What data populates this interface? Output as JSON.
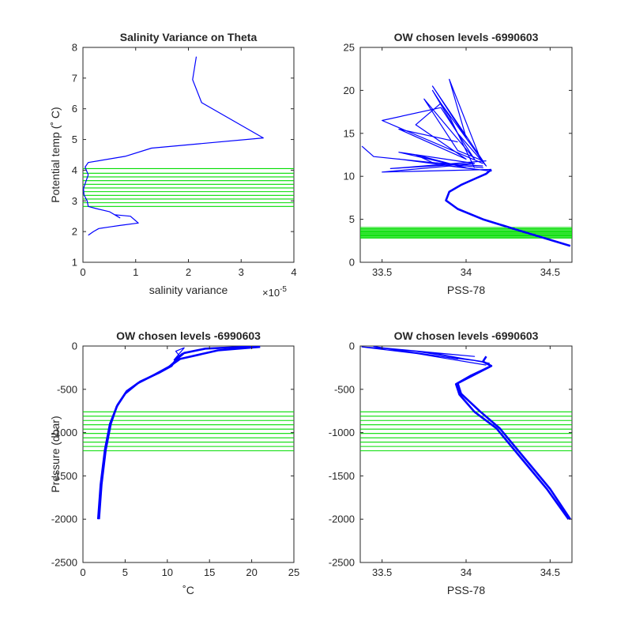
{
  "colors": {
    "data": "#0000ff",
    "levels": "#00dd00",
    "axes": "#262626"
  },
  "chart_data": [
    {
      "type": "line",
      "title": "Salinity Variance on Theta",
      "xlabel": "salinity variance",
      "ylabel": "Potential temp (˚ C)",
      "x_exponent_label": "×10",
      "x_exponent_power": "-5",
      "xlim": [
        0,
        4
      ],
      "ylim": [
        1,
        8
      ],
      "xticks": [
        0,
        1,
        2,
        3,
        4
      ],
      "xticklabels": [
        "0",
        "1",
        "2",
        "3",
        "4"
      ],
      "yticks": [
        1,
        2,
        3,
        4,
        5,
        6,
        7,
        8
      ],
      "yticklabels": [
        "1",
        "2",
        "3",
        "4",
        "5",
        "6",
        "7",
        "8"
      ],
      "series": [
        {
          "x": [
            2.15,
            2.08,
            2.25,
            3.42,
            1.3,
            0.8,
            0.1,
            0.04,
            0.1,
            0.05,
            0.01,
            0.02,
            0.08,
            0.1,
            0.25,
            0.5,
            0.7,
            0.6,
            0.9,
            1.0,
            1.05,
            0.7,
            0.5,
            0.3,
            0.2,
            0.1
          ],
          "y": [
            7.7,
            6.95,
            6.2,
            5.05,
            4.72,
            4.45,
            4.25,
            4.1,
            3.85,
            3.6,
            3.4,
            3.2,
            3.0,
            2.82,
            2.75,
            2.65,
            2.45,
            2.55,
            2.5,
            2.35,
            2.28,
            2.2,
            2.15,
            2.1,
            2.0,
            1.88
          ]
        }
      ],
      "levels": [
        2.82,
        2.94,
        3.06,
        3.18,
        3.3,
        3.42,
        3.54,
        3.66,
        3.78,
        3.9,
        4.05
      ]
    },
    {
      "type": "line",
      "title": "OW chosen levels -6990603",
      "xlabel": "PSS-78",
      "ylabel": "",
      "xlim": [
        33.37,
        34.63
      ],
      "ylim": [
        0,
        25
      ],
      "xticks": [
        33.5,
        34,
        34.5
      ],
      "xticklabels": [
        "33.5",
        "34",
        "34.5"
      ],
      "yticks": [
        0,
        5,
        10,
        15,
        20,
        25
      ],
      "yticklabels": [
        "0",
        "5",
        "10",
        "15",
        "20",
        "25"
      ],
      "series": [
        {
          "x": [
            34.62,
            34.3,
            34.1,
            33.95,
            33.88,
            33.9,
            33.97,
            34.05,
            34.12,
            34.15
          ],
          "y": [
            1.9,
            3.8,
            5.0,
            6.2,
            7.2,
            8.2,
            9.0,
            9.7,
            10.3,
            10.8
          ]
        },
        {
          "x": [
            34.15,
            33.5,
            33.9,
            34.15,
            33.6,
            34.1,
            33.45,
            33.38
          ],
          "y": [
            10.8,
            10.5,
            11.2,
            10.6,
            12.0,
            11.0,
            12.3,
            13.5
          ]
        },
        {
          "x": [
            34.1,
            33.8,
            33.7,
            34.0,
            33.6,
            34.05,
            33.55,
            34.12
          ],
          "y": [
            11.2,
            11.6,
            12.5,
            11.0,
            12.8,
            11.5,
            10.9,
            11.8
          ]
        },
        {
          "x": [
            34.1,
            33.5,
            33.85,
            34.05,
            33.75,
            33.95,
            34.1,
            33.8,
            34.0,
            33.9,
            34.08
          ],
          "y": [
            11.5,
            16.5,
            18.0,
            12.0,
            19.0,
            13.0,
            11.8,
            20.5,
            14.5,
            21.3,
            12.3
          ]
        },
        {
          "x": [
            34.05,
            33.9,
            33.8,
            33.95,
            34.12,
            33.85,
            33.7,
            34.0,
            33.6,
            33.95
          ],
          "y": [
            11.0,
            17.0,
            20.0,
            15.0,
            11.2,
            18.5,
            16.0,
            12.0,
            15.5,
            14.0
          ]
        }
      ],
      "levels": [
        2.82,
        2.94,
        3.06,
        3.18,
        3.3,
        3.42,
        3.54,
        3.66,
        3.78,
        3.9,
        4.05
      ]
    },
    {
      "type": "line",
      "title": "OW chosen levels -6990603",
      "xlabel": "˚C",
      "ylabel": "Pressure (dbar)",
      "xlim": [
        0,
        25
      ],
      "ylim": [
        -2500,
        0
      ],
      "xticks": [
        0,
        5,
        10,
        15,
        20,
        25
      ],
      "xticklabels": [
        "0",
        "5",
        "10",
        "15",
        "20",
        "25"
      ],
      "yticks": [
        -2500,
        -2000,
        -1500,
        -1000,
        -500,
        0
      ],
      "yticklabels": [
        "-2500",
        "-2000",
        "-1500",
        "-1000",
        "-500",
        "0"
      ],
      "series": [
        {
          "x": [
            1.9,
            2.2,
            2.7,
            3.3,
            4.0,
            5.0,
            6.5,
            8.5,
            10.2,
            11.5,
            16.0,
            21.0
          ],
          "y": [
            -2000,
            -1600,
            -1200,
            -900,
            -700,
            -550,
            -430,
            -330,
            -240,
            -150,
            -50,
            -10
          ]
        },
        {
          "x": [
            1.8,
            2.1,
            2.6,
            3.2,
            4.1,
            5.2,
            6.8,
            9.0,
            10.5,
            11.0,
            12.0,
            14.5,
            20.5
          ],
          "y": [
            -2000,
            -1600,
            -1200,
            -900,
            -680,
            -520,
            -410,
            -310,
            -230,
            -160,
            -80,
            -30,
            -5
          ]
        },
        {
          "x": [
            10.0,
            11.5,
            11.0,
            12.0,
            10.8,
            11.8
          ],
          "y": [
            -250,
            -120,
            -60,
            -20,
            -160,
            -80
          ]
        }
      ],
      "levels": [
        -760,
        -810,
        -860,
        -910,
        -960,
        -1010,
        -1060,
        -1110,
        -1160,
        -1210
      ]
    },
    {
      "type": "line",
      "title": "OW chosen levels -6990603",
      "xlabel": "PSS-78",
      "ylabel": "",
      "xlim": [
        33.37,
        34.63
      ],
      "ylim": [
        -2500,
        0
      ],
      "xticks": [
        33.5,
        34,
        34.5
      ],
      "xticklabels": [
        "33.5",
        "34",
        "34.5"
      ],
      "yticks": [
        -2500,
        -2000,
        -1500,
        -1000,
        -500,
        0
      ],
      "yticklabels": [
        "-2500",
        "-2000",
        "-1500",
        "-1000",
        "-500",
        "0"
      ],
      "series": [
        {
          "x": [
            34.62,
            34.5,
            34.35,
            34.2,
            34.08,
            33.97,
            33.95,
            34.05,
            34.15,
            34.1,
            34.12
          ],
          "y": [
            -2000,
            -1650,
            -1300,
            -950,
            -750,
            -550,
            -430,
            -330,
            -230,
            -180,
            -120
          ]
        },
        {
          "x": [
            34.61,
            34.48,
            34.33,
            34.18,
            34.05,
            33.96,
            33.94,
            34.03,
            34.14
          ],
          "y": [
            -2000,
            -1650,
            -1300,
            -950,
            -760,
            -560,
            -440,
            -340,
            -240
          ]
        },
        {
          "x": [
            34.14,
            33.8,
            33.6,
            33.38,
            34.1,
            33.7,
            34.05,
            33.5,
            33.95,
            33.45,
            34.12
          ],
          "y": [
            -200,
            -80,
            -40,
            -10,
            -180,
            -60,
            -120,
            -20,
            -150,
            -5,
            -220
          ]
        }
      ],
      "levels": [
        -760,
        -810,
        -860,
        -910,
        -960,
        -1010,
        -1060,
        -1110,
        -1160,
        -1210
      ]
    }
  ]
}
